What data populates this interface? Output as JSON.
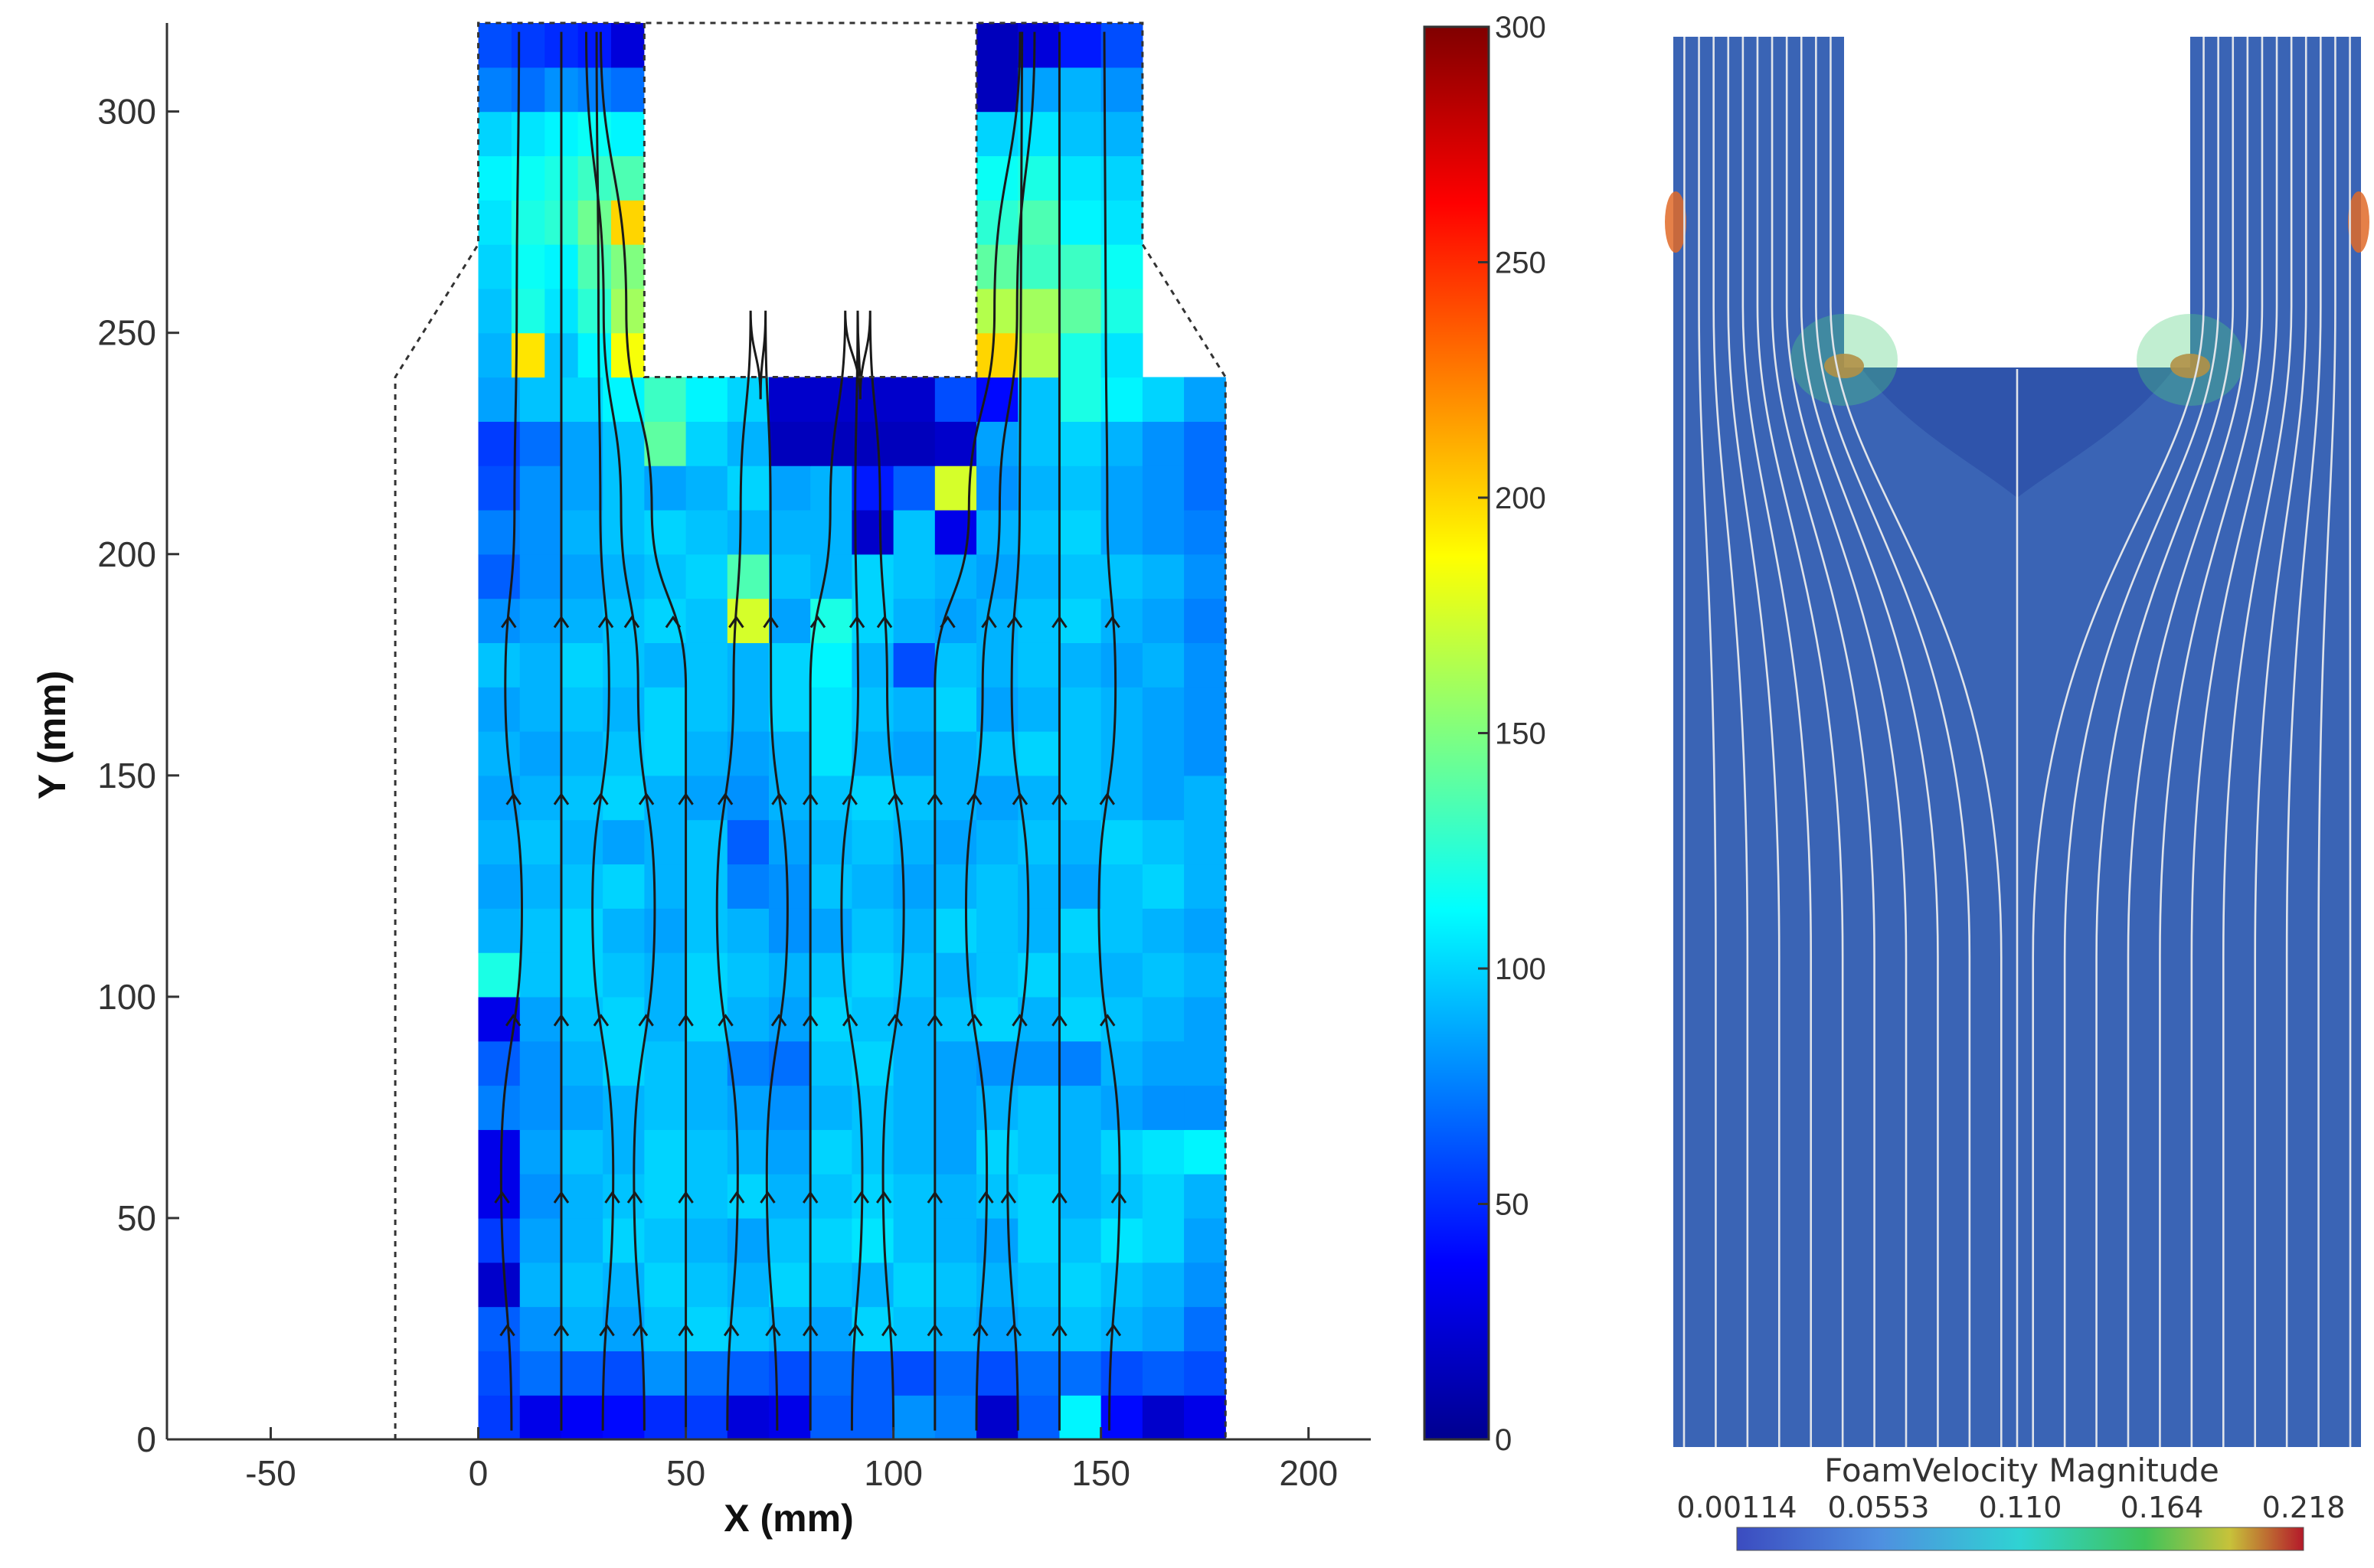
{
  "chart_data": [
    {
      "type": "heatmap",
      "title": "",
      "xlabel": "X (mm)",
      "ylabel": "Y (mm)",
      "xlim": [
        -75,
        215
      ],
      "ylim": [
        0,
        320
      ],
      "xticks": [
        -50,
        0,
        50,
        100,
        150,
        200
      ],
      "yticks": [
        0,
        50,
        100,
        150,
        200,
        250,
        300
      ],
      "grid": false,
      "colorbar": {
        "range": [
          0,
          300
        ],
        "ticks": [
          0,
          50,
          100,
          150,
          200,
          250,
          300
        ],
        "colormap": "jet"
      },
      "domain": {
        "x": [
          0,
          160
        ],
        "y": [
          0,
          320
        ]
      },
      "slot": {
        "x": [
          40,
          120
        ],
        "y": [
          240,
          320
        ]
      },
      "outline_dashed": [
        [
          -20,
          0
        ],
        [
          -20,
          240
        ],
        [
          0,
          270
        ],
        [
          0,
          320
        ],
        [
          160,
          320
        ],
        [
          160,
          270
        ],
        [
          180,
          240
        ],
        [
          180,
          0
        ]
      ],
      "cell_size_mm": 10,
      "rows": [
        {
          "y": 5,
          "v": [
            55,
            30,
            35,
            40,
            50,
            55,
            25,
            30,
            65,
            65,
            80,
            75,
            20,
            65,
            110,
            40,
            20,
            30
          ]
        },
        {
          "y": 15,
          "v": [
            60,
            70,
            65,
            60,
            80,
            70,
            65,
            60,
            70,
            65,
            60,
            70,
            60,
            70,
            70,
            60,
            65,
            60
          ]
        },
        {
          "y": 25,
          "v": [
            65,
            80,
            90,
            85,
            95,
            100,
            95,
            90,
            85,
            100,
            95,
            90,
            85,
            90,
            95,
            90,
            85,
            70
          ]
        },
        {
          "y": 35,
          "v": [
            20,
            90,
            95,
            90,
            100,
            95,
            90,
            100,
            95,
            90,
            100,
            95,
            90,
            95,
            100,
            95,
            90,
            80
          ]
        },
        {
          "y": 45,
          "v": [
            55,
            85,
            90,
            100,
            95,
            90,
            85,
            95,
            100,
            105,
            95,
            90,
            85,
            100,
            95,
            105,
            100,
            85
          ]
        },
        {
          "y": 55,
          "v": [
            30,
            80,
            90,
            95,
            100,
            95,
            100,
            90,
            95,
            100,
            95,
            90,
            95,
            100,
            90,
            95,
            100,
            90
          ]
        },
        {
          "y": 65,
          "v": [
            30,
            85,
            95,
            90,
            100,
            95,
            90,
            85,
            100,
            95,
            90,
            85,
            100,
            95,
            90,
            100,
            105,
            110
          ]
        },
        {
          "y": 75,
          "v": [
            75,
            80,
            85,
            90,
            95,
            90,
            85,
            80,
            90,
            95,
            90,
            85,
            90,
            95,
            90,
            85,
            80,
            80
          ]
        },
        {
          "y": 85,
          "v": [
            65,
            80,
            90,
            100,
            95,
            90,
            75,
            70,
            95,
            100,
            90,
            85,
            80,
            80,
            75,
            90,
            85,
            85
          ]
        },
        {
          "y": 95,
          "v": [
            30,
            85,
            95,
            100,
            90,
            100,
            90,
            85,
            100,
            95,
            90,
            95,
            100,
            90,
            100,
            95,
            90,
            85
          ]
        },
        {
          "y": 105,
          "v": [
            120,
            95,
            100,
            95,
            90,
            100,
            95,
            90,
            95,
            100,
            95,
            90,
            95,
            100,
            95,
            90,
            95,
            90
          ]
        },
        {
          "y": 115,
          "v": [
            90,
            95,
            100,
            90,
            85,
            95,
            90,
            80,
            85,
            95,
            90,
            100,
            95,
            90,
            100,
            95,
            90,
            85
          ]
        },
        {
          "y": 125,
          "v": [
            85,
            90,
            95,
            100,
            90,
            95,
            75,
            80,
            95,
            90,
            85,
            90,
            95,
            90,
            85,
            95,
            100,
            90
          ]
        },
        {
          "y": 135,
          "v": [
            90,
            95,
            90,
            85,
            90,
            95,
            65,
            85,
            90,
            95,
            90,
            85,
            90,
            95,
            90,
            100,
            95,
            90
          ]
        },
        {
          "y": 145,
          "v": [
            85,
            90,
            95,
            100,
            90,
            85,
            80,
            90,
            95,
            100,
            95,
            90,
            85,
            90,
            95,
            90,
            85,
            90
          ]
        },
        {
          "y": 155,
          "v": [
            90,
            85,
            90,
            95,
            100,
            90,
            85,
            90,
            105,
            90,
            85,
            90,
            95,
            100,
            95,
            90,
            85,
            80
          ]
        },
        {
          "y": 165,
          "v": [
            85,
            90,
            95,
            90,
            100,
            95,
            90,
            100,
            105,
            95,
            90,
            100,
            85,
            90,
            95,
            90,
            85,
            80
          ]
        },
        {
          "y": 175,
          "v": [
            95,
            90,
            100,
            95,
            90,
            95,
            90,
            100,
            110,
            90,
            60,
            95,
            90,
            95,
            90,
            85,
            90,
            80
          ]
        },
        {
          "y": 185,
          "v": [
            80,
            85,
            90,
            95,
            100,
            95,
            175,
            85,
            120,
            100,
            90,
            85,
            90,
            95,
            100,
            90,
            85,
            75
          ]
        },
        {
          "y": 195,
          "v": [
            65,
            80,
            85,
            90,
            95,
            100,
            135,
            95,
            90,
            100,
            95,
            90,
            85,
            90,
            95,
            95,
            90,
            80
          ]
        },
        {
          "y": 205,
          "v": [
            75,
            80,
            90,
            95,
            100,
            95,
            90,
            90,
            90,
            20,
            95,
            30,
            90,
            95,
            100,
            85,
            80,
            75
          ]
        },
        {
          "y": 215,
          "v": [
            60,
            80,
            85,
            95,
            85,
            90,
            100,
            85,
            90,
            45,
            65,
            175,
            80,
            90,
            95,
            85,
            80,
            70
          ]
        },
        {
          "y": 225,
          "v": [
            55,
            70,
            85,
            95,
            140,
            100,
            90,
            15,
            15,
            15,
            15,
            20,
            85,
            95,
            100,
            90,
            80,
            70
          ]
        },
        {
          "y": 235,
          "v": [
            85,
            95,
            100,
            110,
            130,
            110,
            100,
            20,
            20,
            20,
            20,
            60,
            40,
            95,
            120,
            110,
            100,
            85
          ]
        },
        {
          "y": 245,
          "v": [
            90,
            195,
            95,
            110,
            185
          ]
        },
        {
          "y": 255,
          "v": [
            95,
            120,
            105,
            125,
            160
          ]
        },
        {
          "y": 265,
          "v": [
            100,
            115,
            110,
            135,
            150
          ]
        },
        {
          "y": 275,
          "v": [
            105,
            120,
            125,
            145,
            200
          ]
        },
        {
          "y": 285,
          "v": [
            110,
            115,
            120,
            130,
            135
          ]
        },
        {
          "y": 295,
          "v": [
            100,
            105,
            110,
            115,
            110
          ]
        },
        {
          "y": 305,
          "v": [
            75,
            70,
            80,
            75,
            70
          ]
        },
        {
          "y": 315,
          "v": [
            60,
            55,
            50,
            45,
            25
          ]
        }
      ],
      "rows_upper_right": [
        {
          "y": 245,
          "v": [
            200,
            165,
            120,
            105
          ]
        },
        {
          "y": 255,
          "v": [
            165,
            160,
            140,
            120
          ]
        },
        {
          "y": 265,
          "v": [
            140,
            130,
            130,
            115
          ]
        },
        {
          "y": 275,
          "v": [
            125,
            135,
            110,
            105
          ]
        },
        {
          "y": 285,
          "v": [
            115,
            120,
            105,
            100
          ]
        },
        {
          "y": 295,
          "v": [
            100,
            105,
            95,
            90
          ]
        },
        {
          "y": 305,
          "v": [
            15,
            85,
            90,
            80
          ]
        },
        {
          "y": 315,
          "v": [
            15,
            25,
            45,
            60
          ]
        }
      ],
      "streamline_x_mm": [
        8,
        20,
        30,
        40,
        50,
        60,
        72,
        80,
        90,
        100,
        110,
        120,
        130,
        140,
        152
      ]
    },
    {
      "type": "heatmap",
      "title": "FoamVelocity Magnitude",
      "colorbar": {
        "range": [
          0.00114,
          0.218
        ],
        "tick_labels": [
          "0.00114",
          "0.0553",
          "0.110",
          "0.164",
          "0.218"
        ],
        "orientation": "horizontal"
      },
      "field_background_value": 0.03,
      "streamline_count": 22
    }
  ],
  "colors": {
    "axis": "#333333",
    "jet_low": "#00008f",
    "jet_high": "#800000",
    "field_background": "#3a64b5",
    "streamline_right": "#e0e4ea"
  }
}
